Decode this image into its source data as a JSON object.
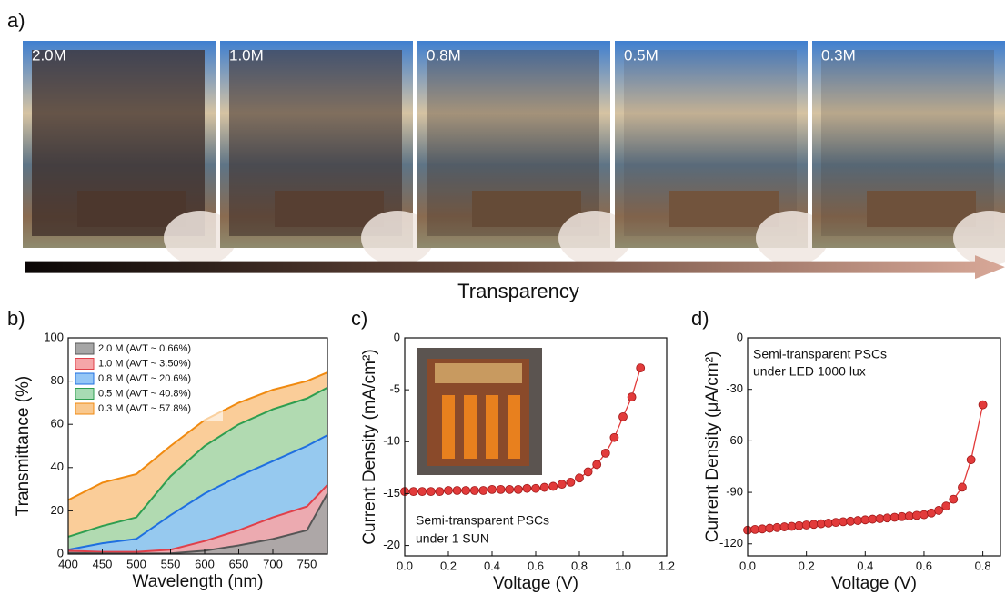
{
  "panel_labels": [
    "a)",
    "b)",
    "c)",
    "d)"
  ],
  "photo_labels": [
    "2.0M",
    "1.0M",
    "0.8M",
    "0.5M",
    "0.3M"
  ],
  "arrow_label": "Transparency",
  "chart_data": [
    {
      "type": "area",
      "xlabel": "Wavelength (nm)",
      "ylabel": "Transmittance (%)",
      "xlim": [
        400,
        780
      ],
      "xticks": [
        400,
        450,
        500,
        550,
        600,
        650,
        700,
        750
      ],
      "ylim": [
        0,
        100
      ],
      "yticks": [
        0,
        20,
        40,
        60,
        80,
        100
      ],
      "legend": "upper left",
      "x": [
        400,
        450,
        500,
        550,
        600,
        650,
        700,
        750,
        780
      ],
      "series": [
        {
          "name": "0.3 M (AVT ~ 57.8%)",
          "color": "#f08a10",
          "fill": "#f9c88e",
          "values": [
            25,
            33,
            37,
            50,
            62,
            70,
            76,
            80,
            84
          ]
        },
        {
          "name": "0.5 M (AVT ~ 40.8%)",
          "color": "#2e9e50",
          "fill": "#a8dbb4",
          "values": [
            8,
            13,
            17,
            36,
            50,
            60,
            67,
            72,
            77
          ]
        },
        {
          "name": "0.8 M (AVT ~ 20.6%)",
          "color": "#1f6fe0",
          "fill": "#94c6f6",
          "values": [
            2,
            5,
            7,
            18,
            28,
            36,
            43,
            50,
            55
          ]
        },
        {
          "name": "1.0 M (AVT ~ 3.50%)",
          "color": "#e0404a",
          "fill": "#f5a6a8",
          "values": [
            1.5,
            1,
            1,
            2,
            6,
            11,
            17,
            22,
            32
          ]
        },
        {
          "name": "2.0 M (AVT ~ 0.66%)",
          "color": "#555555",
          "fill": "#a6a6a6",
          "values": [
            0.5,
            0.3,
            0.2,
            0.3,
            1.5,
            4,
            7,
            11,
            28
          ]
        }
      ]
    },
    {
      "type": "line",
      "markers": true,
      "xlabel": "Voltage (V)",
      "ylabel": "Current Density (mA/cm²)",
      "annotation": [
        "Semi-transparent PSCs",
        "under 1 SUN"
      ],
      "xlim": [
        0,
        1.2
      ],
      "xticks": [
        {
          "value": 0,
          "label": "0.0"
        },
        0.2,
        0.4,
        0.6,
        0.8,
        {
          "value": 1,
          "label": "1.0"
        },
        1.2
      ],
      "ylim": [
        -21,
        0
      ],
      "yticks": [
        0,
        -5,
        -10,
        -15,
        -20
      ],
      "x": [
        0,
        0.04,
        0.08,
        0.12,
        0.16,
        0.2,
        0.24,
        0.28,
        0.32,
        0.36,
        0.4,
        0.44,
        0.48,
        0.52,
        0.56,
        0.6,
        0.64,
        0.68,
        0.72,
        0.76,
        0.8,
        0.84,
        0.88,
        0.92,
        0.96,
        1,
        1.04,
        1.08
      ],
      "series": [
        {
          "color": "#e23b3b",
          "values": [
            -14.8,
            -14.8,
            -14.8,
            -14.8,
            -14.8,
            -14.7,
            -14.7,
            -14.7,
            -14.7,
            -14.7,
            -14.6,
            -14.6,
            -14.6,
            -14.6,
            -14.5,
            -14.5,
            -14.4,
            -14.3,
            -14.1,
            -13.9,
            -13.5,
            -12.9,
            -12.2,
            -11.1,
            -9.6,
            -7.6,
            -5.7,
            -2.9
          ]
        }
      ]
    },
    {
      "type": "line",
      "markers": true,
      "xlabel": "Voltage (V)",
      "ylabel": "Current Density (μA/cm²)",
      "annotation": [
        "Semi-transparent PSCs",
        "under LED 1000 lux"
      ],
      "xlim": [
        0,
        0.86
      ],
      "xticks": [
        {
          "value": 0,
          "label": "0.0"
        },
        0.2,
        0.4,
        0.6,
        0.8
      ],
      "ylim": [
        -127,
        0
      ],
      "yticks": [
        0,
        -30,
        -60,
        -90,
        -120
      ],
      "x": [
        0,
        0.025,
        0.05,
        0.075,
        0.1,
        0.125,
        0.15,
        0.175,
        0.2,
        0.225,
        0.25,
        0.275,
        0.3,
        0.325,
        0.35,
        0.375,
        0.4,
        0.425,
        0.45,
        0.475,
        0.5,
        0.525,
        0.55,
        0.575,
        0.6,
        0.625,
        0.65,
        0.675,
        0.7,
        0.73,
        0.76,
        0.8
      ],
      "series": [
        {
          "color": "#e23b3b",
          "values": [
            -112,
            -111.6,
            -111.3,
            -110.9,
            -110.5,
            -110.1,
            -109.8,
            -109.4,
            -109,
            -108.6,
            -108.3,
            -107.9,
            -107.5,
            -107.1,
            -106.8,
            -106.4,
            -106,
            -105.6,
            -105.3,
            -104.9,
            -104.5,
            -104.1,
            -103.8,
            -103.4,
            -103,
            -102,
            -100.5,
            -98,
            -94,
            -87,
            -71,
            -39
          ]
        }
      ]
    }
  ]
}
